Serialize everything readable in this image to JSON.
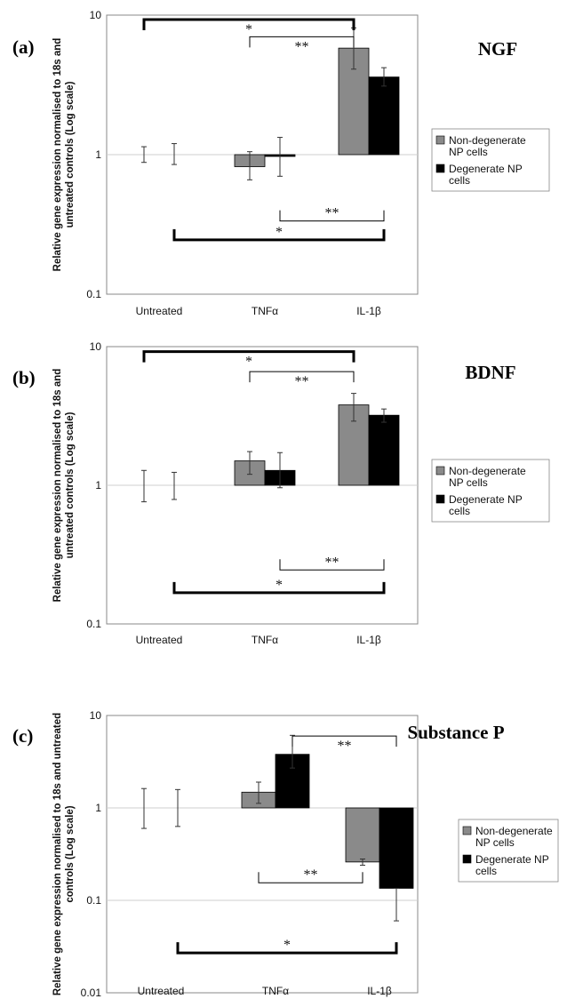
{
  "legend_entries": [
    "Non-degenerate NP cells",
    "Degenerate NP cells"
  ],
  "ylabel_main": "Relative gene expression normalised to 18s and untreated controls (Log scale)",
  "colors": {
    "non_degenerate": "#8a8a8a",
    "degenerate": "#000000",
    "axis": "#888888"
  },
  "chart_data": [
    {
      "type": "bar",
      "panel": "(a)",
      "title": "NGF",
      "ylabel_lines": [
        "Relative gene expression normalised to 18s and",
        "untreated controls (Log scale)"
      ],
      "yscale": "log",
      "ylim": [
        0.1,
        10
      ],
      "yticks": [
        "0.1",
        "1",
        "10"
      ],
      "categories": [
        "Untreated",
        "TNFα",
        "IL-1β"
      ],
      "series": [
        {
          "name": "Non-degenerate NP cells",
          "values": [
            1,
            0.82,
            5.8
          ],
          "err_low": [
            0.88,
            0.66,
            4.1
          ],
          "err_high": [
            1.14,
            1.05,
            8.1
          ]
        },
        {
          "name": "Degenerate NP cells",
          "values": [
            1,
            0.99,
            3.6
          ],
          "err_low": [
            0.85,
            0.7,
            3.1
          ],
          "err_high": [
            1.2,
            1.33,
            4.2
          ]
        }
      ],
      "brackets": [
        {
          "from": [
            0,
            0
          ],
          "to": [
            2,
            0
          ],
          "y": 9.3,
          "label": "*",
          "bold": true,
          "dir": "down"
        },
        {
          "from": [
            1,
            0
          ],
          "to": [
            2,
            0
          ],
          "y": 7.0,
          "label": "**",
          "bold": false,
          "dir": "down"
        },
        {
          "from": [
            1,
            1
          ],
          "to": [
            2,
            1
          ],
          "y": 0.335,
          "label": "**",
          "bold": false,
          "dir": "up"
        },
        {
          "from": [
            0,
            1
          ],
          "to": [
            2,
            1
          ],
          "y": 0.245,
          "label": "*",
          "bold": true,
          "dir": "up"
        }
      ]
    },
    {
      "type": "bar",
      "panel": "(b)",
      "title": "BDNF",
      "ylabel_lines": [
        "Relative gene expression normalised to 18s and",
        "untreated controls (Log scale)"
      ],
      "yscale": "log",
      "ylim": [
        0.1,
        10
      ],
      "yticks": [
        "0.1",
        "1",
        "10"
      ],
      "categories": [
        "Untreated",
        "TNFα",
        "IL-1β"
      ],
      "series": [
        {
          "name": "Non-degenerate NP cells",
          "values": [
            1,
            1.5,
            3.8
          ],
          "err_low": [
            0.76,
            1.2,
            2.9
          ],
          "err_high": [
            1.28,
            1.75,
            4.6
          ]
        },
        {
          "name": "Degenerate NP cells",
          "values": [
            1,
            1.28,
            3.2
          ],
          "err_low": [
            0.79,
            0.96,
            2.85
          ],
          "err_high": [
            1.24,
            1.72,
            3.55
          ]
        }
      ],
      "brackets": [
        {
          "from": [
            0,
            0
          ],
          "to": [
            2,
            0
          ],
          "y": 9.2,
          "label": "*",
          "bold": true,
          "dir": "down"
        },
        {
          "from": [
            1,
            0
          ],
          "to": [
            2,
            0
          ],
          "y": 6.6,
          "label": "**",
          "bold": false,
          "dir": "down"
        },
        {
          "from": [
            1,
            1
          ],
          "to": [
            2,
            1
          ],
          "y": 0.245,
          "label": "**",
          "bold": false,
          "dir": "up"
        },
        {
          "from": [
            0,
            1
          ],
          "to": [
            2,
            1
          ],
          "y": 0.168,
          "label": "*",
          "bold": true,
          "dir": "up"
        }
      ]
    },
    {
      "type": "bar",
      "panel": "(c)",
      "title": "Substance P",
      "ylabel_lines": [
        "Relative gene expression normalised to 18s and untreated",
        "controls (Log scale)"
      ],
      "yscale": "log",
      "ylim": [
        0.01,
        10
      ],
      "yticks": [
        "0.01",
        "0.1",
        "1",
        "10"
      ],
      "categories": [
        "Untreated",
        "TNFα",
        "IL-1β"
      ],
      "series": [
        {
          "name": "Non-degenerate NP cells",
          "values": [
            1,
            1.48,
            0.26
          ],
          "err_low": [
            0.6,
            1.12,
            0.24
          ],
          "err_high": [
            1.62,
            1.9,
            0.28
          ]
        },
        {
          "name": "Degenerate NP cells",
          "values": [
            1,
            3.8,
            0.135
          ],
          "err_low": [
            0.63,
            2.7,
            0.06
          ],
          "err_high": [
            1.58,
            6.1,
            0.135
          ]
        }
      ],
      "brackets": [
        {
          "from": [
            1,
            1
          ],
          "to": [
            2,
            1
          ],
          "y": 6.0,
          "label": "**",
          "bold": false,
          "dir": "down"
        },
        {
          "from": [
            1,
            0
          ],
          "to": [
            2,
            0
          ],
          "y": 0.155,
          "label": "**",
          "bold": false,
          "dir": "up"
        },
        {
          "from": [
            0,
            1
          ],
          "to": [
            2,
            1
          ],
          "y": 0.027,
          "label": "*",
          "bold": true,
          "dir": "up"
        }
      ]
    }
  ]
}
